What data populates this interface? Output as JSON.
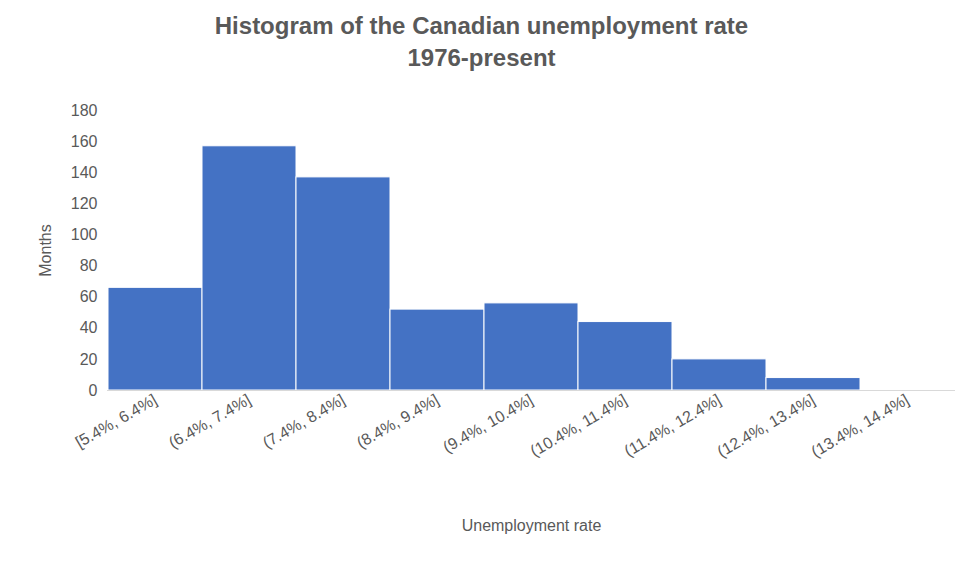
{
  "chart_data": {
    "type": "bar",
    "title": "Histogram of the Canadian unemployment rate",
    "subtitle": "1976-present",
    "x_label": "Unemployment rate",
    "y_label": "Months",
    "categories": [
      "[5.4%, 6.4%]",
      "(6.4%, 7.4%]",
      "(7.4%, 8.4%]",
      "(8.4%, 9.4%]",
      "(9.4%, 10.4%]",
      "(10.4%, 11.4%]",
      "(11.4%, 12.4%]",
      "(12.4%, 13.4%]",
      "(13.4%, 14.4%]"
    ],
    "values": [
      66,
      157,
      137,
      52,
      56,
      44,
      20,
      8,
      0
    ],
    "color": "#4472c4",
    "ylim": [
      0,
      180
    ],
    "yticks": [
      0,
      20,
      40,
      60,
      80,
      100,
      120,
      140,
      160,
      180
    ],
    "grid": false
  }
}
